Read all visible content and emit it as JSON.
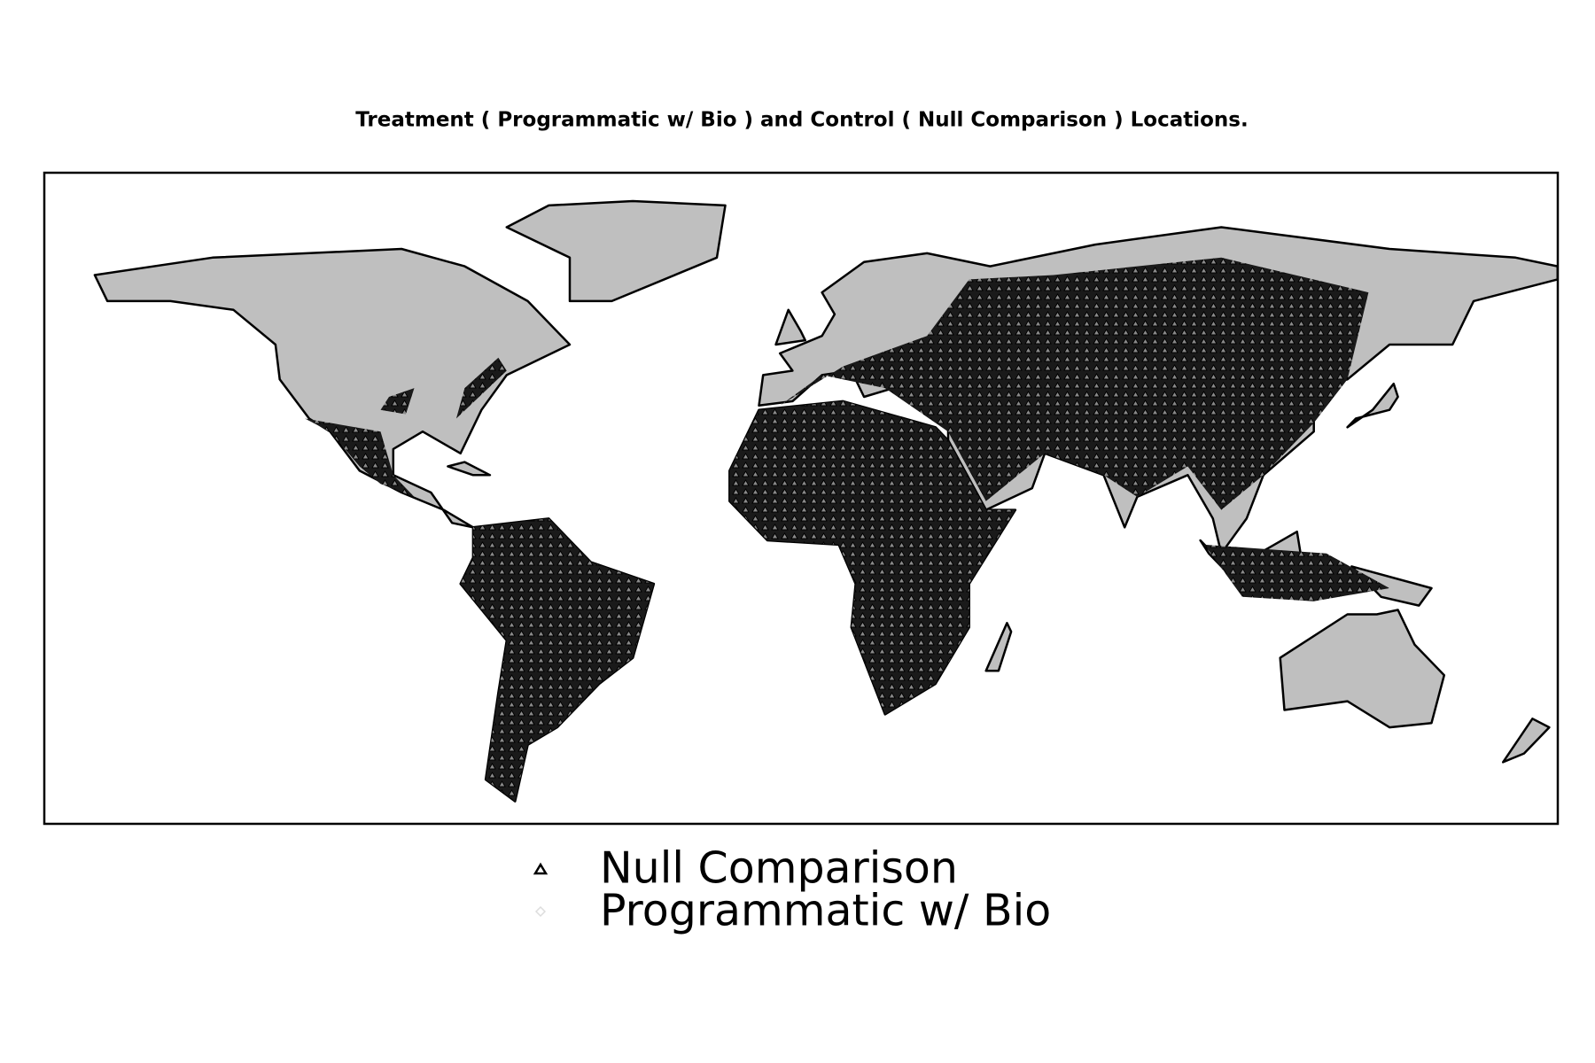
{
  "title": "Treatment ( Programmatic w/ Bio ) and Control ( Null Comparison ) Locations.",
  "legend": [
    {
      "label": "Null Comparison"
    },
    {
      "label": "Programmatic w/ Bio"
    }
  ]
}
